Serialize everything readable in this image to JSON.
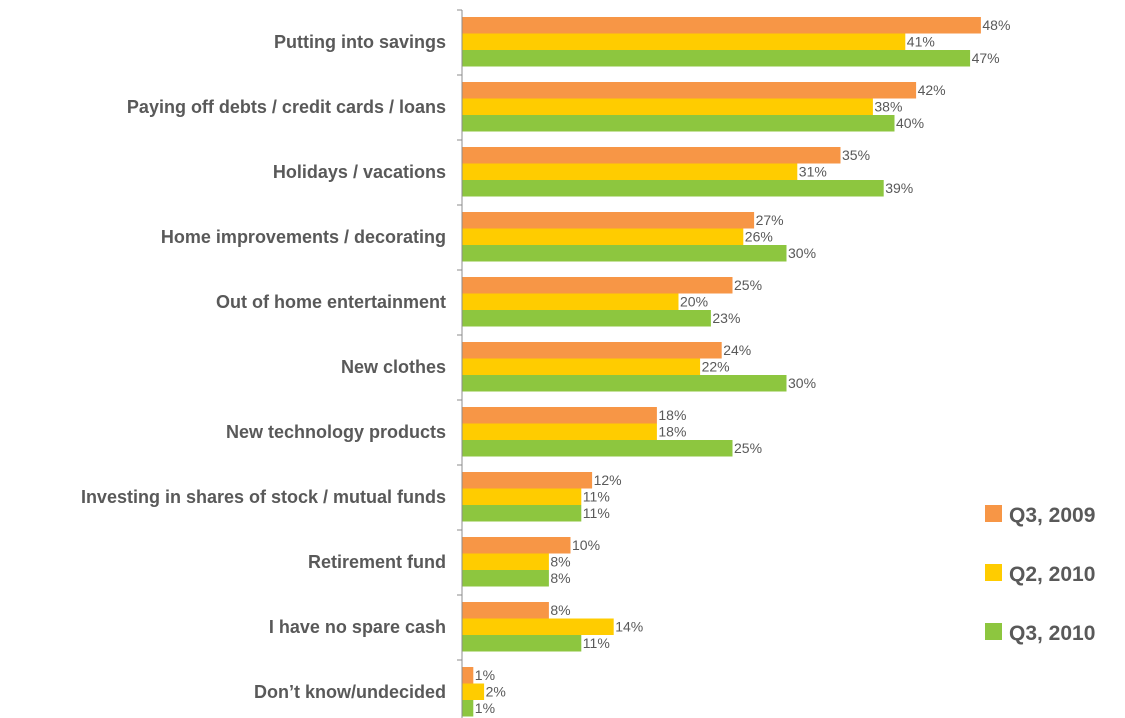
{
  "chart_data": {
    "type": "bar",
    "orientation": "horizontal",
    "categories": [
      "Putting into savings",
      "Paying off debts / credit cards / loans",
      "Holidays / vacations",
      "Home improvements / decorating",
      "Out of home entertainment",
      "New clothes",
      "New technology products",
      "Investing in shares of stock / mutual funds",
      "Retirement fund",
      "I have no spare cash",
      "Don’t know/undecided"
    ],
    "series": [
      {
        "name": "Q3, 2009",
        "color": "#F79646",
        "values": [
          48,
          42,
          35,
          27,
          25,
          24,
          18,
          12,
          10,
          8,
          1
        ]
      },
      {
        "name": "Q2, 2010",
        "color": "#FFCC00",
        "values": [
          41,
          38,
          31,
          26,
          20,
          22,
          18,
          11,
          8,
          14,
          2
        ]
      },
      {
        "name": "Q3, 2010",
        "color": "#8DC63F",
        "values": [
          47,
          40,
          39,
          30,
          23,
          30,
          25,
          11,
          8,
          11,
          1
        ]
      }
    ],
    "value_suffix": "%",
    "xlim": [
      0,
      50
    ],
    "grid": false,
    "legend_position": "right"
  }
}
